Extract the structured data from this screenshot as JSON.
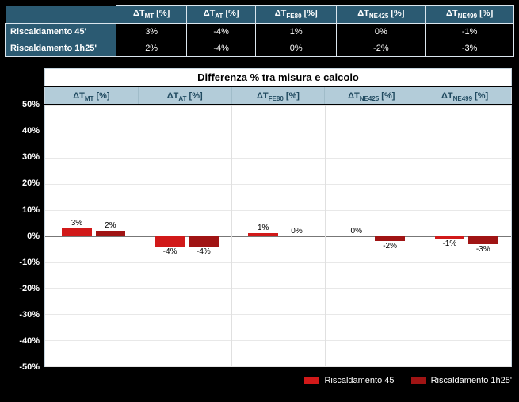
{
  "table": {
    "columns": [
      {
        "delta": "ΔT",
        "sub": "MT",
        "unit": " [%]"
      },
      {
        "delta": "ΔT",
        "sub": "AT",
        "unit": " [%]"
      },
      {
        "delta": "ΔT",
        "sub": "FE80",
        "unit": " [%]"
      },
      {
        "delta": "ΔT",
        "sub": "NE425",
        "unit": " [%]"
      },
      {
        "delta": "ΔT",
        "sub": "NE499",
        "unit": " [%]"
      }
    ],
    "rows": [
      {
        "label": "Riscaldamento 45'",
        "cells": [
          "3%",
          "-4%",
          "1%",
          "0%",
          "-1%"
        ]
      },
      {
        "label": "Riscaldamento 1h25'",
        "cells": [
          "2%",
          "-4%",
          "0%",
          "-2%",
          "-3%"
        ]
      }
    ]
  },
  "chart": {
    "type": "bar",
    "title": "Differenza % tra misura e calcolo",
    "subheaders": [
      {
        "delta": "ΔT",
        "sub": "MT",
        "unit": " [%]"
      },
      {
        "delta": "ΔT",
        "sub": "AT",
        "unit": " [%]"
      },
      {
        "delta": "ΔT",
        "sub": "FE80",
        "unit": " [%]"
      },
      {
        "delta": "ΔT",
        "sub": "NE425",
        "unit": " [%]"
      },
      {
        "delta": "ΔT",
        "sub": "NE499",
        "unit": " [%]"
      }
    ],
    "y_axis": {
      "min": -50,
      "max": 50,
      "step": 10,
      "labels": [
        "50%",
        "40%",
        "30%",
        "20%",
        "10%",
        "0%",
        "-10%",
        "-20%",
        "-30%",
        "-40%",
        "-50%"
      ]
    },
    "series": [
      {
        "name": "Riscaldamento 45'",
        "color": "#d11919",
        "values": [
          3,
          -4,
          1,
          0,
          -1
        ],
        "labels": [
          "3%",
          "-4%",
          "1%",
          "0%",
          "-1%"
        ]
      },
      {
        "name": "Riscaldamento 1h25'",
        "color": "#a01414",
        "values": [
          2,
          -4,
          0,
          -2,
          -3
        ],
        "labels": [
          "2%",
          "-4%",
          "0%",
          "-2%",
          "-3%"
        ]
      }
    ],
    "colors": {
      "background": "#000000",
      "plot_bg": "#ffffff",
      "grid": "#e8e8e8",
      "subheader_bg": "#b3ccd9",
      "subheader_text": "#204a60",
      "table_header_bg": "#2b5a72"
    },
    "legend": [
      "Riscaldamento 45'",
      "Riscaldamento 1h25'"
    ]
  }
}
